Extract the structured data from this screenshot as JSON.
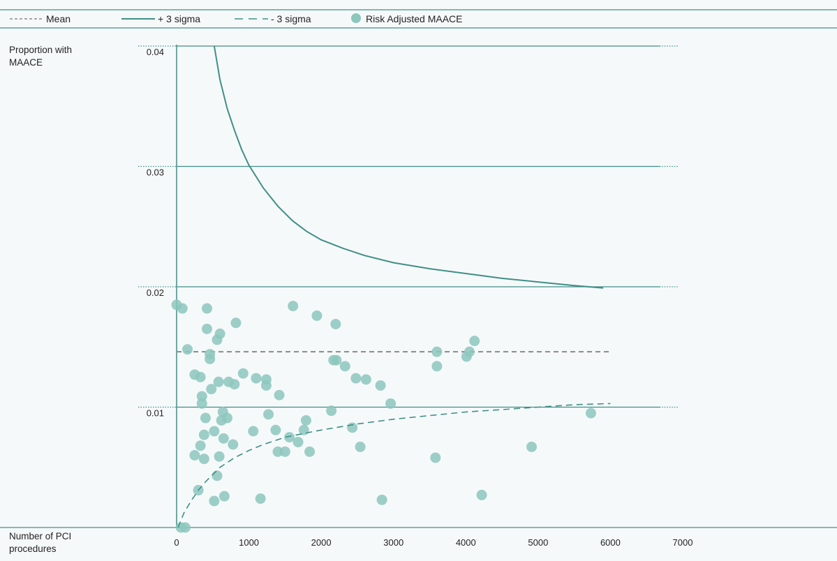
{
  "chart_data": {
    "type": "scatter",
    "title": "",
    "ylabel": [
      "Proportion with",
      "MAACE"
    ],
    "xlabel": [
      "Number of PCI",
      "procedures"
    ],
    "xlim": [
      0,
      7000
    ],
    "ylim": [
      0,
      0.04
    ],
    "x_ticks": [
      "0",
      "1000",
      "2000",
      "3000",
      "4000",
      "5000",
      "6000",
      "7000"
    ],
    "y_ticks": [
      "0.01",
      "0.02",
      "0.03",
      "0.04"
    ],
    "grid": "horizontal at 0.01, 0.02, 0.03, 0.04",
    "legend": {
      "position": "top",
      "items": [
        {
          "label": "Mean",
          "style": "dashed-grey"
        },
        {
          "label": "+ 3 sigma",
          "style": "solid-teal"
        },
        {
          "label": "- 3 sigma",
          "style": "dashed-teal"
        },
        {
          "label": "Risk Adjusted MAACE",
          "style": "circle-teal"
        }
      ]
    },
    "mean": 0.0146,
    "series": [
      {
        "name": "Mean",
        "type": "line",
        "x": [
          0,
          6000
        ],
        "y": [
          0.0146,
          0.0146
        ]
      },
      {
        "name": "+ 3 sigma",
        "type": "line",
        "x": [
          520,
          600,
          700,
          800,
          900,
          1000,
          1200,
          1400,
          1600,
          1800,
          2000,
          2300,
          2600,
          3000,
          3500,
          4000,
          4500,
          5000,
          5500,
          5900
        ],
        "y": [
          0.04,
          0.0372,
          0.0348,
          0.033,
          0.0314,
          0.0301,
          0.0282,
          0.0267,
          0.0255,
          0.0246,
          0.0239,
          0.0232,
          0.0226,
          0.022,
          0.0215,
          0.0211,
          0.0207,
          0.0204,
          0.0201,
          0.0199
        ]
      },
      {
        "name": "- 3 sigma",
        "type": "line",
        "x": [
          20,
          100,
          200,
          300,
          400,
          500,
          600,
          800,
          1000,
          1200,
          1500,
          2000,
          2500,
          3000,
          3500,
          4000,
          4500,
          5000,
          5500,
          6000
        ],
        "y": [
          0.0,
          0.0012,
          0.0022,
          0.0031,
          0.0038,
          0.0044,
          0.005,
          0.0058,
          0.0064,
          0.0069,
          0.0075,
          0.0081,
          0.0086,
          0.009,
          0.0093,
          0.0096,
          0.0098,
          0.01,
          0.0102,
          0.0103
        ]
      },
      {
        "name": "Risk Adjusted MAACE",
        "type": "scatter",
        "points": [
          [
            0,
            0.0185
          ],
          [
            80,
            0.0182
          ],
          [
            150,
            0.0148
          ],
          [
            250,
            0.0127
          ],
          [
            330,
            0.0125
          ],
          [
            420,
            0.0182
          ],
          [
            420,
            0.0165
          ],
          [
            600,
            0.0161
          ],
          [
            560,
            0.0156
          ],
          [
            820,
            0.017
          ],
          [
            460,
            0.0144
          ],
          [
            460,
            0.014
          ],
          [
            350,
            0.0109
          ],
          [
            350,
            0.0103
          ],
          [
            480,
            0.0115
          ],
          [
            580,
            0.0121
          ],
          [
            720,
            0.0121
          ],
          [
            800,
            0.0119
          ],
          [
            920,
            0.0128
          ],
          [
            1100,
            0.0124
          ],
          [
            1240,
            0.0123
          ],
          [
            1240,
            0.0118
          ],
          [
            1420,
            0.011
          ],
          [
            1270,
            0.0094
          ],
          [
            1370,
            0.0081
          ],
          [
            400,
            0.0091
          ],
          [
            640,
            0.0096
          ],
          [
            700,
            0.0091
          ],
          [
            620,
            0.0089
          ],
          [
            520,
            0.008
          ],
          [
            380,
            0.0077
          ],
          [
            650,
            0.0074
          ],
          [
            780,
            0.0069
          ],
          [
            330,
            0.0068
          ],
          [
            250,
            0.006
          ],
          [
            380,
            0.0057
          ],
          [
            590,
            0.0059
          ],
          [
            1060,
            0.008
          ],
          [
            1560,
            0.0075
          ],
          [
            1680,
            0.0071
          ],
          [
            1760,
            0.0081
          ],
          [
            1790,
            0.0089
          ],
          [
            1400,
            0.0063
          ],
          [
            1500,
            0.0063
          ],
          [
            1840,
            0.0063
          ],
          [
            560,
            0.0043
          ],
          [
            300,
            0.0031
          ],
          [
            660,
            0.0026
          ],
          [
            520,
            0.0022
          ],
          [
            1160,
            0.0024
          ],
          [
            60,
            0.0
          ],
          [
            120,
            0.0
          ],
          [
            1610,
            0.0184
          ],
          [
            1940,
            0.0176
          ],
          [
            2200,
            0.0169
          ],
          [
            2170,
            0.0139
          ],
          [
            2210,
            0.0139
          ],
          [
            2330,
            0.0134
          ],
          [
            2480,
            0.0124
          ],
          [
            2620,
            0.0123
          ],
          [
            2820,
            0.0118
          ],
          [
            2960,
            0.0103
          ],
          [
            2140,
            0.0097
          ],
          [
            2430,
            0.0083
          ],
          [
            2540,
            0.0067
          ],
          [
            2840,
            0.0023
          ],
          [
            3600,
            0.0146
          ],
          [
            3600,
            0.0134
          ],
          [
            3580,
            0.0058
          ],
          [
            4010,
            0.0142
          ],
          [
            4050,
            0.0146
          ],
          [
            4120,
            0.0155
          ],
          [
            4220,
            0.0027
          ],
          [
            4910,
            0.0067
          ],
          [
            5730,
            0.0095
          ]
        ]
      }
    ],
    "colors": {
      "line": "#3f8f86",
      "mean": "#8a8a8a",
      "marker": "#8cc7bd",
      "grid": "#3f8f86",
      "border": "#5ea39a"
    }
  }
}
